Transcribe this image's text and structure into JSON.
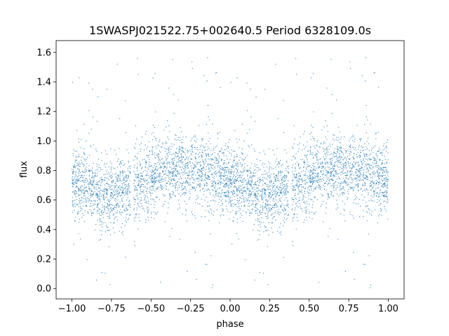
{
  "chart_data": {
    "type": "scatter",
    "title": "1SWASPJ021522.75+002640.5 Period 6328109.0s",
    "xlabel": "phase",
    "ylabel": "flux",
    "xlim": [
      -1.1,
      1.1
    ],
    "ylim": [
      -0.07,
      1.68
    ],
    "x_ticks": [
      -1.0,
      -0.75,
      -0.5,
      -0.25,
      0.0,
      0.25,
      0.5,
      0.75,
      1.0
    ],
    "x_tick_labels": [
      "−1.00",
      "−0.75",
      "−0.50",
      "−0.25",
      "0.00",
      "0.25",
      "0.50",
      "0.75",
      "1.00"
    ],
    "y_ticks": [
      0.0,
      0.2,
      0.4,
      0.6,
      0.8,
      1.0,
      1.2,
      1.4,
      1.6
    ],
    "y_tick_labels": [
      "0.0",
      "0.2",
      "0.4",
      "0.6",
      "0.8",
      "1.0",
      "1.2",
      "1.4",
      "1.6"
    ],
    "grid": false,
    "point_color": "#1f77b4",
    "light_curve_profile": {
      "phase": [
        0.0,
        0.1,
        0.2,
        0.25,
        0.3,
        0.4,
        0.5,
        0.6,
        0.7,
        0.8,
        0.9,
        1.0
      ],
      "median_flux": [
        0.72,
        0.7,
        0.62,
        0.62,
        0.64,
        0.7,
        0.75,
        0.8,
        0.82,
        0.8,
        0.76,
        0.72
      ],
      "scatter_sigma": 0.12
    },
    "observation_gaps": [
      0.37,
      0.39
    ]
  }
}
